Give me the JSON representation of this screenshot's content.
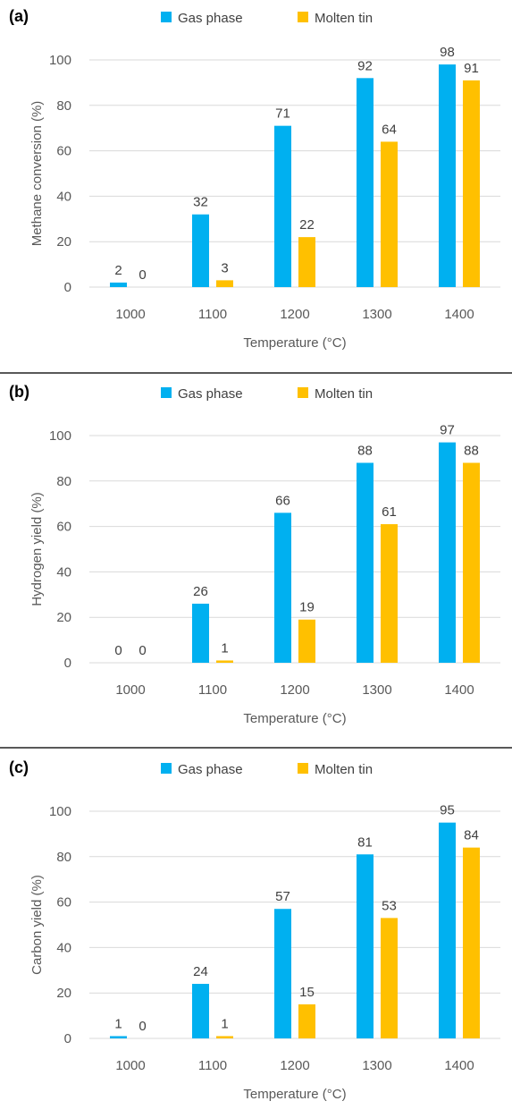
{
  "colors": {
    "gas": "#00B0F0",
    "tin": "#FFC000",
    "grid": "#d9d9d9",
    "divider": "#595959"
  },
  "chart_data": [
    {
      "type": "bar",
      "panel_label": "(a)",
      "categories": [
        "1000",
        "1100",
        "1200",
        "1300",
        "1400"
      ],
      "series": [
        {
          "name": "Gas phase",
          "values": [
            2,
            32,
            71,
            92,
            98
          ]
        },
        {
          "name": "Molten tin",
          "values": [
            0,
            3,
            22,
            64,
            91
          ]
        }
      ],
      "xlabel": "Temperature (°C)",
      "ylabel": "Methane conversion (%)",
      "ylim": [
        0,
        100
      ],
      "yticks": [
        "0",
        "20",
        "40",
        "60",
        "80",
        "100"
      ],
      "legend": "top-center",
      "grid": true
    },
    {
      "type": "bar",
      "panel_label": "(b)",
      "categories": [
        "1000",
        "1100",
        "1200",
        "1300",
        "1400"
      ],
      "series": [
        {
          "name": "Gas phase",
          "values": [
            0,
            26,
            66,
            88,
            97
          ]
        },
        {
          "name": "Molten tin",
          "values": [
            0,
            1,
            19,
            61,
            88
          ]
        }
      ],
      "xlabel": "Temperature (°C)",
      "ylabel": "Hydrogen yield (%)",
      "ylim": [
        0,
        100
      ],
      "yticks": [
        "0",
        "20",
        "40",
        "60",
        "80",
        "100"
      ],
      "legend": "top-center",
      "grid": true
    },
    {
      "type": "bar",
      "panel_label": "(c)",
      "categories": [
        "1000",
        "1100",
        "1200",
        "1300",
        "1400"
      ],
      "series": [
        {
          "name": "Gas phase",
          "values": [
            1,
            24,
            57,
            81,
            95
          ]
        },
        {
          "name": "Molten tin",
          "values": [
            0,
            1,
            15,
            53,
            84
          ]
        }
      ],
      "xlabel": "Temperature (°C)",
      "ylabel": "Carbon yield (%)",
      "ylim": [
        0,
        100
      ],
      "yticks": [
        "0",
        "20",
        "40",
        "60",
        "80",
        "100"
      ],
      "legend": "top-center",
      "grid": true
    }
  ]
}
